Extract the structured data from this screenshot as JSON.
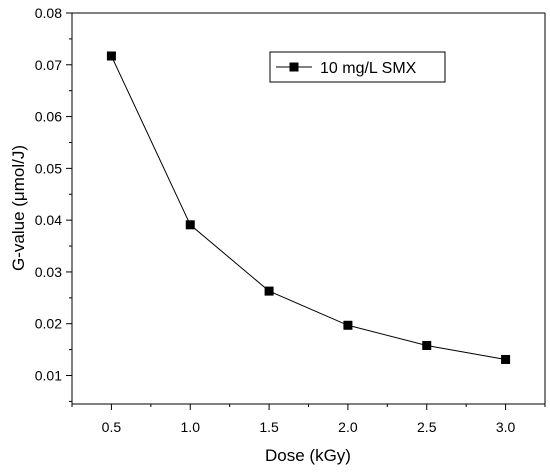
{
  "chart_data": {
    "type": "line",
    "title": "",
    "xlabel": "Dose (kGy)",
    "ylabel": "G-value (μmol/J)",
    "xlim": [
      0.25,
      3.25
    ],
    "ylim": [
      0.0045,
      0.08
    ],
    "xticks": [
      0.5,
      1.0,
      1.5,
      2.0,
      2.5,
      3.0
    ],
    "xtick_labels": [
      "0.5",
      "1.0",
      "1.5",
      "2.0",
      "2.5",
      "3.0"
    ],
    "yticks": [
      0.01,
      0.02,
      0.03,
      0.04,
      0.05,
      0.06,
      0.07,
      0.08
    ],
    "ytick_labels": [
      "0.01",
      "0.02",
      "0.03",
      "0.04",
      "0.05",
      "0.06",
      "0.07",
      "0.08"
    ],
    "grid": false,
    "legend_position": "top-right",
    "series": [
      {
        "name": "10 mg/L SMX",
        "color": "#000000",
        "marker": "square",
        "x": [
          0.5,
          1.0,
          1.5,
          2.0,
          2.5,
          3.0
        ],
        "y": [
          0.0717,
          0.0391,
          0.0263,
          0.0197,
          0.0158,
          0.0131
        ]
      }
    ]
  }
}
